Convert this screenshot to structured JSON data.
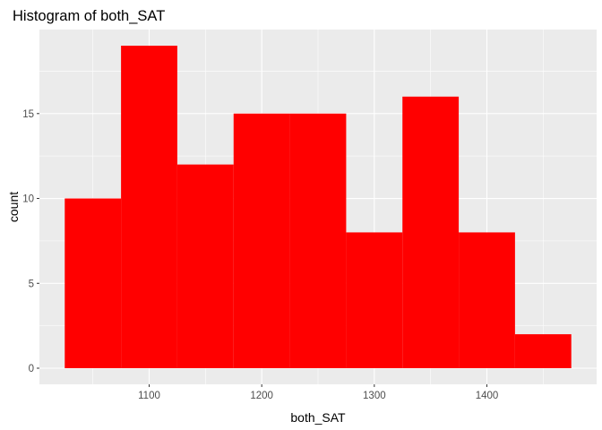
{
  "chart_data": {
    "type": "bar",
    "title": "Histogram of both_SAT",
    "xlabel": "both_SAT",
    "ylabel": "count",
    "bin_width": 50,
    "bins": [
      {
        "start": 1025,
        "end": 1075,
        "count": 10
      },
      {
        "start": 1075,
        "end": 1125,
        "count": 19
      },
      {
        "start": 1125,
        "end": 1175,
        "count": 12
      },
      {
        "start": 1175,
        "end": 1225,
        "count": 15
      },
      {
        "start": 1225,
        "end": 1275,
        "count": 15
      },
      {
        "start": 1275,
        "end": 1325,
        "count": 8
      },
      {
        "start": 1325,
        "end": 1375,
        "count": 16
      },
      {
        "start": 1375,
        "end": 1425,
        "count": 8
      },
      {
        "start": 1425,
        "end": 1475,
        "count": 2
      }
    ],
    "xlim": [
      1002.5,
      1497.5
    ],
    "ylim": [
      -0.95,
      19.95
    ],
    "x_ticks": [
      1100,
      1200,
      1300,
      1400
    ],
    "x_tick_labels": [
      "1100",
      "1200",
      "1300",
      "1400"
    ],
    "y_ticks": [
      0,
      5,
      10,
      15
    ],
    "y_tick_labels": [
      "0",
      "5",
      "10",
      "15"
    ],
    "bar_color": "#ff0000",
    "panel_color": "#ebebeb",
    "grid_color": "#ffffff",
    "grid": true,
    "legend": "none"
  }
}
